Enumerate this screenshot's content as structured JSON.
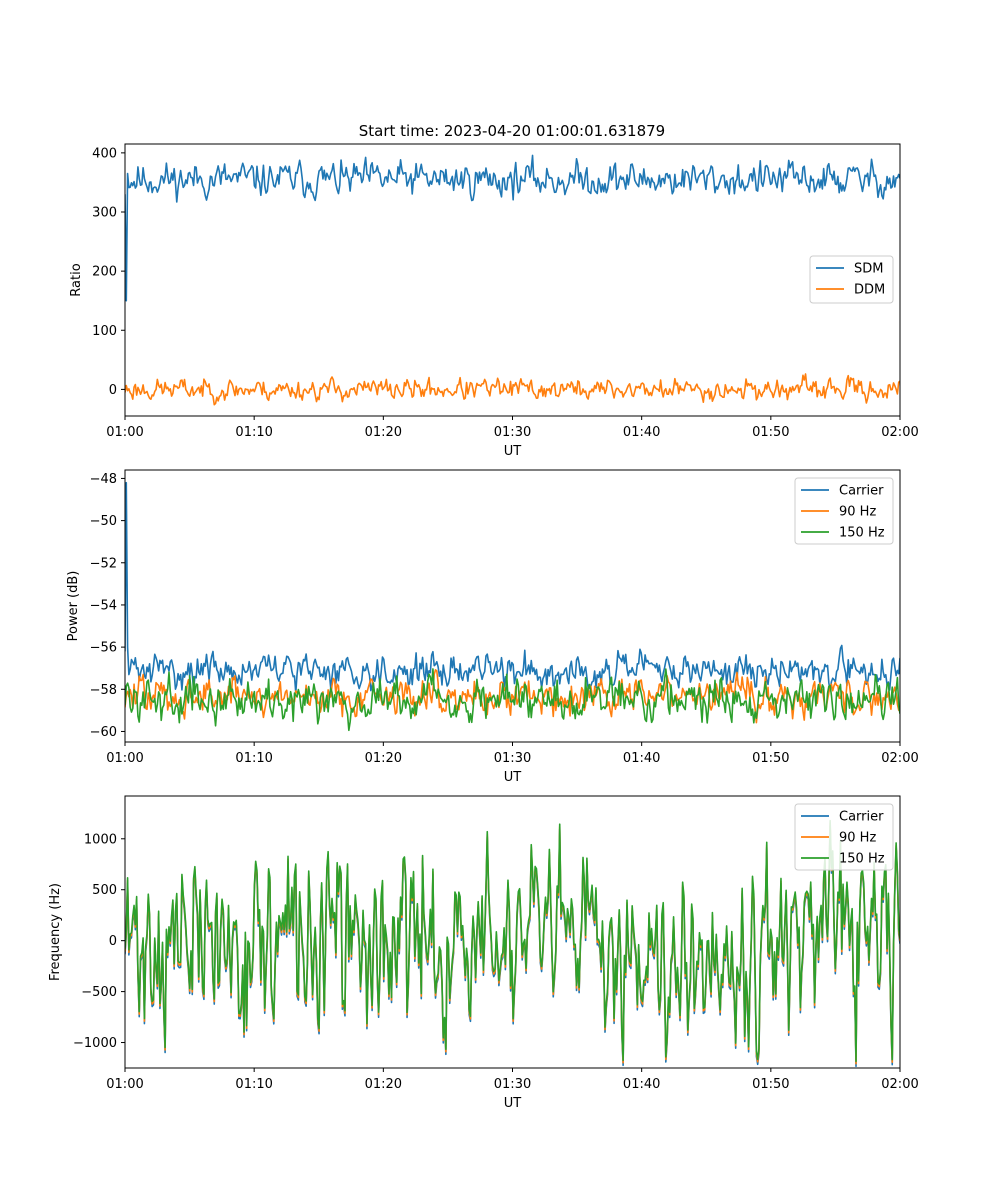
{
  "title": "Start time: 2023-04-20 01:00:01.631879",
  "colors": {
    "blue": "#1f77b4",
    "orange": "#ff7f0e",
    "green": "#2ca02c"
  },
  "chart_data": [
    {
      "type": "line",
      "xlabel": "UT",
      "ylabel": "Ratio",
      "xlim": [
        0,
        60
      ],
      "ylim": [
        -45,
        415
      ],
      "x_tick_labels": [
        "01:00",
        "01:10",
        "01:20",
        "01:30",
        "01:40",
        "01:50",
        "02:00"
      ],
      "y_ticks": [
        0,
        100,
        200,
        300,
        400
      ],
      "y_tick_labels": [
        "0",
        "100",
        "200",
        "300",
        "400"
      ],
      "legend": "center-right",
      "series": [
        {
          "name": "SDM",
          "color": "#1f77b4",
          "mean": 355,
          "noise": 13,
          "spike": [
            330,
            150,
            365
          ],
          "seed": 11
        },
        {
          "name": "DDM",
          "color": "#ff7f0e",
          "mean": 0,
          "noise": 8,
          "seed": 23
        }
      ]
    },
    {
      "type": "line",
      "xlabel": "UT",
      "ylabel": "Power (dB)",
      "xlim": [
        0,
        60
      ],
      "ylim": [
        -60.5,
        -47.6
      ],
      "x_tick_labels": [
        "01:00",
        "01:10",
        "01:20",
        "01:30",
        "01:40",
        "01:50",
        "02:00"
      ],
      "y_ticks": [
        -60,
        -58,
        -56,
        -54,
        -52,
        -50,
        -48
      ],
      "y_tick_labels": [
        "−60",
        "−58",
        "−56",
        "−54",
        "−52",
        "−50",
        "−48"
      ],
      "legend": "top-right",
      "series": [
        {
          "name": "Carrier",
          "color": "#1f77b4",
          "mean": -57.1,
          "noise": 0.35,
          "spike": [
            -56.2,
            -48.2,
            -56.0,
            -57.3
          ],
          "seed": 31
        },
        {
          "name": "90 Hz",
          "color": "#ff7f0e",
          "mean": -58.3,
          "noise": 0.4,
          "seed": 47
        },
        {
          "name": "150 Hz",
          "color": "#2ca02c",
          "mean": -58.4,
          "noise": 0.45,
          "seed": 59
        }
      ]
    },
    {
      "type": "line",
      "xlabel": "UT",
      "ylabel": "Frequency (Hz)",
      "xlim": [
        0,
        60
      ],
      "ylim": [
        -1250,
        1420
      ],
      "x_tick_labels": [
        "01:00",
        "01:10",
        "01:20",
        "01:30",
        "01:40",
        "01:50",
        "02:00"
      ],
      "y_ticks": [
        -1000,
        -500,
        0,
        500,
        1000
      ],
      "y_tick_labels": [
        "−1000",
        "−500",
        "0",
        "500",
        "1000"
      ],
      "legend": "top-right",
      "series": [
        {
          "name": "Carrier",
          "color": "#1f77b4",
          "mean": -20,
          "noise": 380,
          "seed": 71,
          "offset": -50
        },
        {
          "name": "90 Hz",
          "color": "#ff7f0e",
          "mean": -20,
          "noise": 380,
          "seed": 71,
          "offset": -25
        },
        {
          "name": "150 Hz",
          "color": "#2ca02c",
          "mean": -20,
          "noise": 380,
          "seed": 71,
          "offset": 0
        }
      ]
    }
  ]
}
